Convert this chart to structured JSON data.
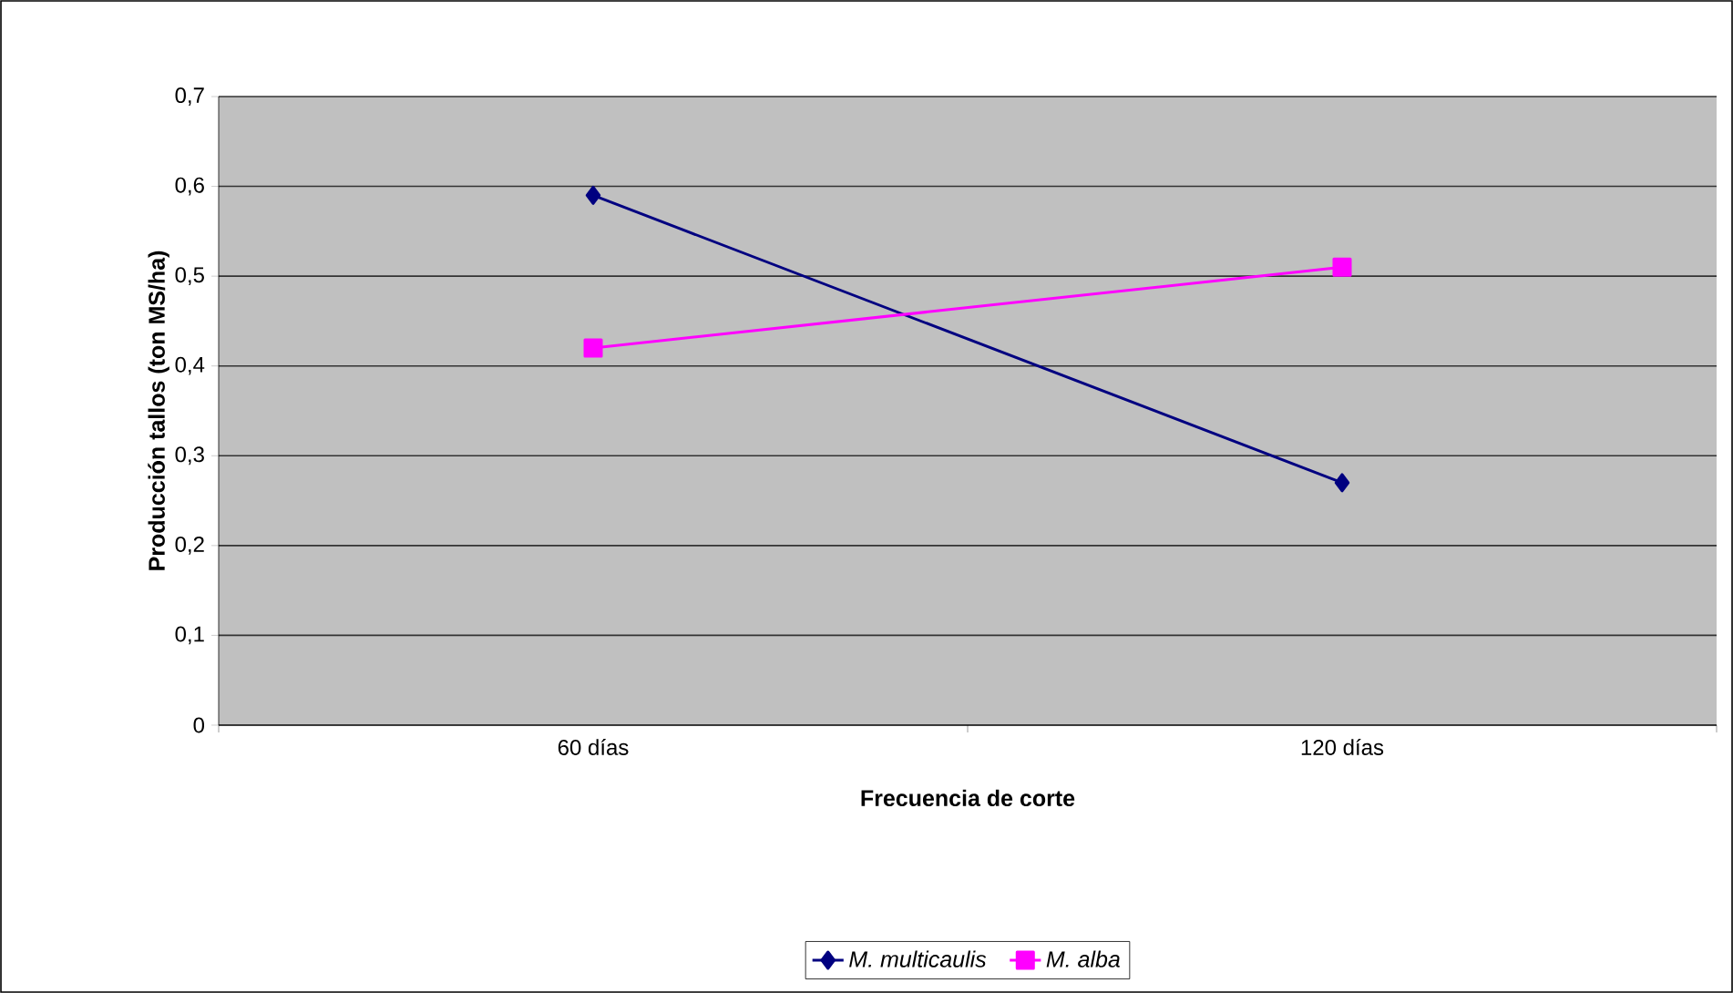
{
  "chart_data": {
    "type": "line",
    "xlabel": "Frecuencia de corte",
    "ylabel": "Producción tallos (ton MS/ha)",
    "categories": [
      "60 días",
      "120 días"
    ],
    "series": [
      {
        "name": "M. multicaulis",
        "color": "#000080",
        "values": [
          0.59,
          0.27
        ],
        "marker": "diamond"
      },
      {
        "name": "M. alba",
        "color": "#ff00ff",
        "values": [
          0.42,
          0.51
        ],
        "marker": "square"
      }
    ],
    "ylim": [
      0,
      0.7
    ],
    "yticks": [
      0,
      {
        "value": 0.1,
        "label": "0,1"
      },
      {
        "value": 0.2,
        "label": "0,2"
      },
      {
        "value": 0.3,
        "label": "0,3"
      },
      {
        "value": 0.4,
        "label": "0,4"
      },
      {
        "value": 0.5,
        "label": "0,5"
      },
      {
        "value": 0.6,
        "label": "0,6"
      },
      {
        "value": 0.7,
        "label": "0,7"
      }
    ],
    "grid": "y",
    "legend": "bottom",
    "line_style": "solid"
  }
}
